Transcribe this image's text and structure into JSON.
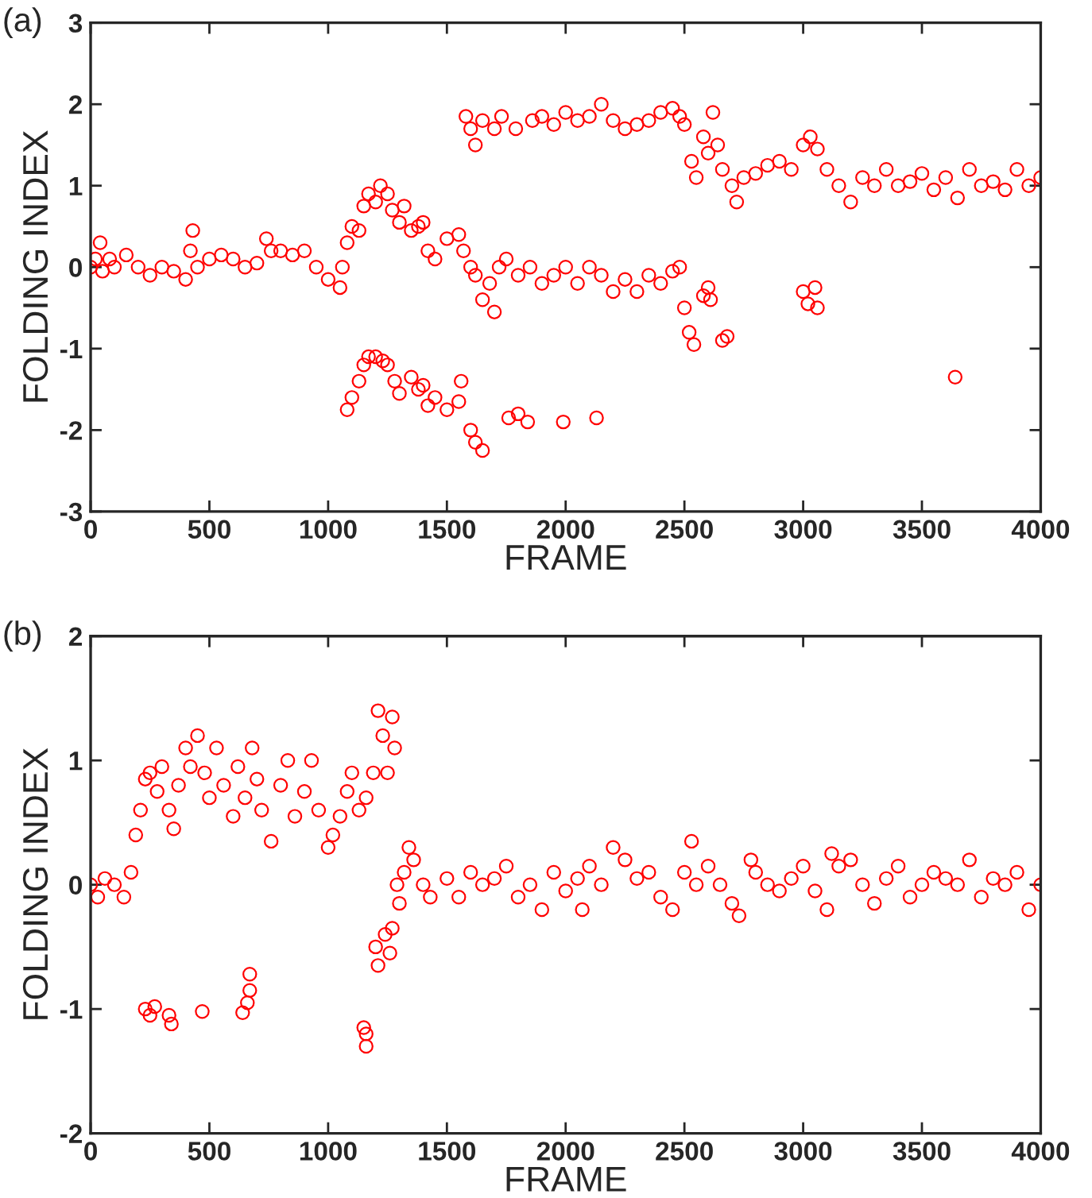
{
  "chart_data": [
    {
      "type": "scatter",
      "title": "(a)",
      "xlabel": "FRAME",
      "ylabel": "FOLDING INDEX",
      "marker": "circle",
      "xlim": [
        0,
        4000
      ],
      "xticks": [
        0,
        500,
        1000,
        1500,
        2000,
        2500,
        3000,
        3500,
        4000
      ],
      "ylim": [
        -3,
        3
      ],
      "yticks": [
        -3,
        -2,
        -1,
        0,
        1,
        2,
        3
      ],
      "series": [
        {
          "color": "#ff0000",
          "x": [
            0,
            20,
            40,
            50,
            80,
            100,
            150,
            200,
            250,
            300,
            350,
            400,
            420,
            430,
            450,
            500,
            550,
            600,
            650,
            700,
            740,
            760,
            800,
            850,
            900,
            950,
            1000,
            1050,
            1060,
            1080,
            1100,
            1130,
            1150,
            1170,
            1200,
            1220,
            1250,
            1270,
            1300,
            1320,
            1350,
            1380,
            1400,
            1420,
            1450,
            1500,
            1550,
            1570,
            1600,
            1620,
            1650,
            1680,
            1700,
            1720,
            1750,
            1800,
            1850,
            1900,
            1950,
            2000,
            2050,
            2100,
            2150,
            2200,
            2250,
            2300,
            2350,
            2400,
            2450,
            2480,
            2500,
            2520,
            2540,
            2580,
            2600,
            2610,
            2660,
            2680,
            1580,
            1600,
            1620,
            1650,
            1700,
            1730,
            1790,
            1860,
            1900,
            1950,
            2000,
            2050,
            2100,
            2150,
            2200,
            2250,
            2300,
            2350,
            2400,
            2450,
            2480,
            2500,
            2530,
            2550,
            2580,
            2600,
            2620,
            2640,
            2660,
            2700,
            2720,
            2750,
            2800,
            2850,
            2900,
            2950,
            3000,
            3030,
            3060,
            3100,
            3150,
            3200,
            3250,
            3300,
            3350,
            3400,
            3450,
            3500,
            3550,
            3600,
            3650,
            3700,
            3750,
            3800,
            3850,
            3900,
            3950,
            4000,
            1080,
            1100,
            1130,
            1150,
            1170,
            1200,
            1230,
            1250,
            1280,
            1300,
            1350,
            1380,
            1400,
            1420,
            1450,
            1500,
            1550,
            1560,
            1600,
            1620,
            1650,
            1760,
            1800,
            1840,
            1990,
            2130,
            3000,
            3020,
            3050,
            3060,
            3640
          ],
          "values": [
            0.0,
            0.1,
            0.3,
            -0.05,
            0.1,
            0.0,
            0.15,
            0.0,
            -0.1,
            0.0,
            -0.05,
            -0.15,
            0.2,
            0.45,
            0.0,
            0.1,
            0.15,
            0.1,
            0.0,
            0.05,
            0.35,
            0.2,
            0.2,
            0.15,
            0.2,
            0.0,
            -0.15,
            -0.25,
            0.0,
            0.3,
            0.5,
            0.45,
            0.75,
            0.9,
            0.8,
            1.0,
            0.9,
            0.7,
            0.55,
            0.75,
            0.45,
            0.5,
            0.55,
            0.2,
            0.1,
            0.35,
            0.4,
            0.2,
            0.0,
            -0.1,
            -0.4,
            -0.2,
            -0.55,
            0.0,
            0.1,
            -0.1,
            0.0,
            -0.2,
            -0.1,
            0.0,
            -0.2,
            0.0,
            -0.1,
            -0.3,
            -0.15,
            -0.3,
            -0.1,
            -0.2,
            -0.05,
            0.0,
            -0.5,
            -0.8,
            -0.95,
            -0.35,
            -0.25,
            -0.4,
            -0.9,
            -0.85,
            1.85,
            1.7,
            1.5,
            1.8,
            1.7,
            1.85,
            1.7,
            1.8,
            1.85,
            1.75,
            1.9,
            1.8,
            1.85,
            2.0,
            1.8,
            1.7,
            1.75,
            1.8,
            1.9,
            1.95,
            1.85,
            1.75,
            1.3,
            1.1,
            1.6,
            1.4,
            1.9,
            1.5,
            1.2,
            1.0,
            0.8,
            1.1,
            1.15,
            1.25,
            1.3,
            1.2,
            1.5,
            1.6,
            1.45,
            1.2,
            1.0,
            0.8,
            1.1,
            1.0,
            1.2,
            1.0,
            1.05,
            1.15,
            0.95,
            1.1,
            0.85,
            1.2,
            1.0,
            1.05,
            0.95,
            1.2,
            1.0,
            1.1,
            -1.75,
            -1.6,
            -1.4,
            -1.2,
            -1.1,
            -1.1,
            -1.15,
            -1.2,
            -1.4,
            -1.55,
            -1.35,
            -1.5,
            -1.45,
            -1.7,
            -1.6,
            -1.75,
            -1.65,
            -1.4,
            -2.0,
            -2.15,
            -2.25,
            -1.85,
            -1.8,
            -1.9,
            -1.9,
            -1.85,
            -0.3,
            -0.45,
            -0.25,
            -0.5,
            -1.35
          ]
        }
      ]
    },
    {
      "type": "scatter",
      "title": "(b)",
      "xlabel": "FRAME",
      "ylabel": "FOLDING INDEX",
      "marker": "circle",
      "xlim": [
        0,
        4000
      ],
      "xticks": [
        0,
        500,
        1000,
        1500,
        2000,
        2500,
        3000,
        3500,
        4000
      ],
      "ylim": [
        -2,
        2
      ],
      "yticks": [
        -2,
        -1,
        0,
        1,
        2
      ],
      "series": [
        {
          "color": "#ff0000",
          "x": [
            0,
            30,
            60,
            100,
            140,
            170,
            190,
            210,
            230,
            250,
            280,
            300,
            330,
            350,
            370,
            400,
            420,
            450,
            480,
            500,
            530,
            560,
            600,
            620,
            650,
            680,
            700,
            720,
            760,
            800,
            830,
            860,
            900,
            930,
            960,
            1000,
            1020,
            1050,
            1080,
            1100,
            1130,
            1160,
            1190,
            1210,
            1230,
            1250,
            1270,
            1280,
            230,
            250,
            270,
            330,
            340,
            470,
            640,
            660,
            670,
            670,
            1150,
            1160,
            1160,
            1200,
            1210,
            1240,
            1260,
            1270,
            1290,
            1300,
            1320,
            1340,
            1360,
            1400,
            1430,
            1500,
            1550,
            1600,
            1650,
            1700,
            1750,
            1800,
            1850,
            1900,
            1950,
            2000,
            2050,
            2070,
            2100,
            2150,
            2200,
            2250,
            2300,
            2350,
            2400,
            2450,
            2500,
            2530,
            2550,
            2600,
            2650,
            2700,
            2730,
            2780,
            2800,
            2850,
            2900,
            2950,
            3000,
            3050,
            3100,
            3120,
            3150,
            3200,
            3250,
            3300,
            3350,
            3400,
            3450,
            3500,
            3550,
            3600,
            3650,
            3700,
            3750,
            3800,
            3850,
            3900,
            3950,
            4000
          ],
          "values": [
            0.0,
            -0.1,
            0.05,
            0.0,
            -0.1,
            0.1,
            0.4,
            0.6,
            0.85,
            0.9,
            0.75,
            0.95,
            0.6,
            0.45,
            0.8,
            1.1,
            0.95,
            1.2,
            0.9,
            0.7,
            1.1,
            0.8,
            0.55,
            0.95,
            0.7,
            1.1,
            0.85,
            0.6,
            0.35,
            0.8,
            1.0,
            0.55,
            0.75,
            1.0,
            0.6,
            0.3,
            0.4,
            0.55,
            0.75,
            0.9,
            0.6,
            0.7,
            0.9,
            1.4,
            1.2,
            0.9,
            1.35,
            1.1,
            -1.0,
            -1.05,
            -0.98,
            -1.05,
            -1.12,
            -1.02,
            -1.03,
            -0.95,
            -0.72,
            -0.85,
            -1.15,
            -1.2,
            -1.3,
            -0.5,
            -0.65,
            -0.4,
            -0.55,
            -0.35,
            0.0,
            -0.15,
            0.1,
            0.3,
            0.2,
            0.0,
            -0.1,
            0.05,
            -0.1,
            0.1,
            0.0,
            0.05,
            0.15,
            -0.1,
            0.0,
            -0.2,
            0.1,
            -0.05,
            0.05,
            -0.2,
            0.15,
            0.0,
            0.3,
            0.2,
            0.05,
            0.1,
            -0.1,
            -0.2,
            0.1,
            0.35,
            0.0,
            0.15,
            0.0,
            -0.15,
            -0.25,
            0.2,
            0.1,
            0.0,
            -0.05,
            0.05,
            0.15,
            -0.05,
            -0.2,
            0.25,
            0.15,
            0.2,
            0.0,
            -0.15,
            0.05,
            0.15,
            -0.1,
            0.0,
            0.1,
            0.05,
            0.0,
            0.2,
            -0.1,
            0.05,
            0.0,
            0.1,
            -0.2,
            0.0
          ]
        }
      ]
    }
  ]
}
